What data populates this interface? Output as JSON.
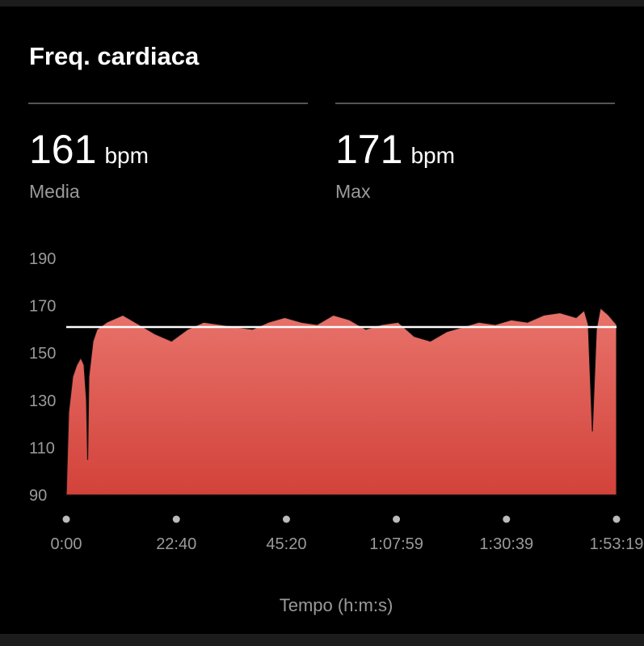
{
  "chart_data": {
    "type": "area",
    "title": "Freq. cardiaca",
    "average": 161,
    "average_label": "Media",
    "max": 171,
    "max_label": "Max",
    "unit": "bpm",
    "x_label": "Tempo (h:m:s)",
    "x": [
      0,
      30,
      80,
      130,
      180,
      220,
      250,
      265,
      280,
      330,
      380,
      500,
      700,
      900,
      1100,
      1300,
      1500,
      1700,
      1900,
      2100,
      2300,
      2500,
      2700,
      2900,
      3100,
      3300,
      3500,
      3700,
      3900,
      4100,
      4300,
      4500,
      4700,
      4900,
      5100,
      5300,
      5500,
      5700,
      5900,
      6100,
      6300,
      6400,
      6450,
      6500,
      6550,
      6600,
      6700,
      6799
    ],
    "values": [
      90,
      125,
      140,
      145,
      148,
      145,
      130,
      105,
      140,
      155,
      160,
      163,
      166,
      162,
      158,
      155,
      160,
      163,
      162,
      161,
      160,
      163,
      165,
      163,
      162,
      166,
      164,
      160,
      162,
      163,
      157,
      155,
      159,
      161,
      163,
      162,
      164,
      163,
      166,
      167,
      165,
      168,
      162,
      117,
      160,
      169,
      166,
      162
    ],
    "color": "#dd5a50",
    "xlim": [
      0,
      6799
    ],
    "xticks": [
      {
        "value": 0,
        "label": "0:00"
      },
      {
        "value": 1360,
        "label": "22:40"
      },
      {
        "value": 2720,
        "label": "45:20"
      },
      {
        "value": 4079,
        "label": "1:07:59"
      },
      {
        "value": 5439,
        "label": "1:30:39"
      },
      {
        "value": 6799,
        "label": "1:53:19"
      }
    ],
    "ylim": [
      90,
      190
    ],
    "yticks": [
      90,
      110,
      130,
      150,
      170,
      190
    ]
  }
}
